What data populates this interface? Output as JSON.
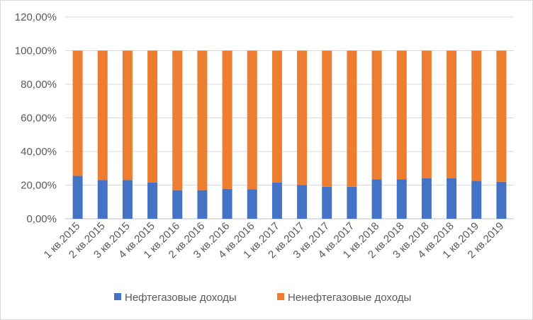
{
  "chart_data": {
    "type": "bar",
    "stacked": true,
    "categories": [
      "1 кв.2015",
      "2 кв.2015",
      "3 кв.2015",
      "4 кв.2015",
      "1 кв.2016",
      "2 кв.2016",
      "3 кв.2016",
      "4 кв.2016",
      "1 кв.2017",
      "2 кв.2017",
      "3 кв.2017",
      "4 кв.2017",
      "1 кв.2018",
      "2 кв.2018",
      "3 кв.2018",
      "4 кв.2018",
      "1 кв.2019",
      "2 кв.2019"
    ],
    "series": [
      {
        "name": "Нефтегазовые доходы",
        "color": "#4472C4",
        "values": [
          25.5,
          23.0,
          23.0,
          21.5,
          17.0,
          17.0,
          17.8,
          17.5,
          21.5,
          20.0,
          19.0,
          19.0,
          23.5,
          23.5,
          24.0,
          24.0,
          22.5,
          22.0
        ]
      },
      {
        "name": "Ненефтегазовые доходы",
        "color": "#ED7D31",
        "values": [
          74.5,
          77.0,
          77.0,
          78.5,
          83.0,
          83.0,
          82.2,
          82.5,
          78.5,
          80.0,
          81.0,
          81.0,
          76.5,
          76.5,
          76.0,
          76.0,
          77.5,
          78.0
        ]
      }
    ],
    "yticks": [
      "0,00%",
      "20,00%",
      "40,00%",
      "60,00%",
      "80,00%",
      "100,00%",
      "120,00%"
    ],
    "ylim": [
      0,
      120
    ],
    "grid": true,
    "legend": "bottom"
  }
}
